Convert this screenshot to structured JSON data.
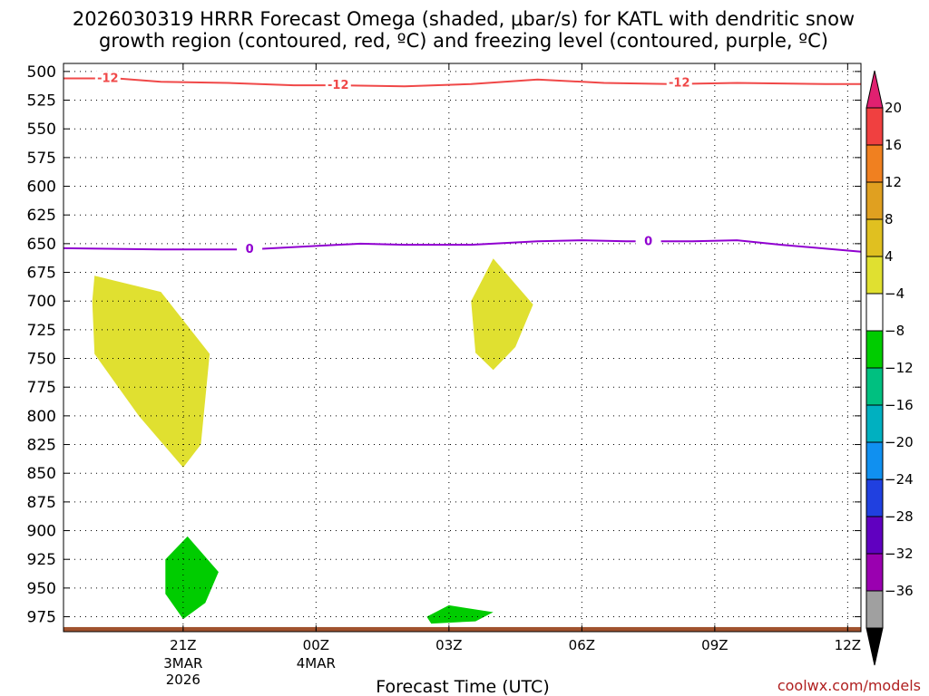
{
  "chart_data": {
    "type": "contour",
    "title_lines": [
      "2026030319 HRRR Forecast Omega (shaded, μbar/s) for KATL with dendritic snow",
      "growth region (contoured, red, ºC) and freezing level (contoured, purple, ºC)"
    ],
    "xlabel": "Forecast Time (UTC)",
    "ylabel": "",
    "credit": "coolwx.com/models",
    "y_axis": {
      "units": "hPa",
      "inverted": true,
      "range": [
        988,
        493
      ],
      "ticks": [
        500,
        525,
        550,
        575,
        600,
        625,
        650,
        675,
        700,
        725,
        750,
        775,
        800,
        825,
        850,
        875,
        900,
        925,
        950,
        975
      ]
    },
    "x_axis": {
      "units": "hours after 19Z 3MAR2026",
      "range": [
        -0.7,
        17.3
      ],
      "ticks": [
        {
          "hour": 2,
          "label": "21Z",
          "sub": [
            "3MAR",
            "2026"
          ]
        },
        {
          "hour": 5,
          "label": "00Z",
          "sub": [
            "4MAR"
          ]
        },
        {
          "hour": 8,
          "label": "03Z",
          "sub": []
        },
        {
          "hour": 11,
          "label": "06Z",
          "sub": []
        },
        {
          "hour": 14,
          "label": "09Z",
          "sub": []
        },
        {
          "hour": 17,
          "label": "12Z",
          "sub": []
        }
      ]
    },
    "grid": true,
    "colorbar": {
      "levels": [
        20,
        16,
        12,
        8,
        4,
        -4,
        -8,
        -12,
        -16,
        -20,
        -24,
        -28,
        -32,
        -36
      ],
      "colors": [
        "#e02070",
        "#f04040",
        "#f08020",
        "#e0a020",
        "#e0c020",
        "#e0e030",
        "#ffffff",
        "#00cc00",
        "#00c080",
        "#00b0c0",
        "#1090f0",
        "#2040e0",
        "#6000c0",
        "#9a00b0",
        "#a0a0a0",
        "#000000"
      ]
    },
    "contours": [
      {
        "label": "-12",
        "color": "#f04848",
        "points": [
          [
            -0.7,
            506
          ],
          [
            0.5,
            506
          ],
          [
            1.5,
            509
          ],
          [
            3,
            510
          ],
          [
            4.5,
            512
          ],
          [
            5.5,
            512
          ],
          [
            7,
            513
          ],
          [
            8.5,
            511
          ],
          [
            10,
            507
          ],
          [
            11.5,
            510
          ],
          [
            13,
            511
          ],
          [
            14.5,
            510
          ],
          [
            16.5,
            511
          ],
          [
            17.3,
            511
          ]
        ],
        "label_at": [
          [
            0.3,
            506
          ],
          [
            5.5,
            512
          ],
          [
            13.2,
            510
          ]
        ]
      },
      {
        "label": "0",
        "color": "#9000d0",
        "points": [
          [
            -0.7,
            654
          ],
          [
            1.5,
            655
          ],
          [
            3.5,
            655
          ],
          [
            5,
            652
          ],
          [
            6,
            650
          ],
          [
            7,
            651
          ],
          [
            8.5,
            651
          ],
          [
            10,
            648
          ],
          [
            11,
            647
          ],
          [
            12,
            648
          ],
          [
            13.5,
            648
          ],
          [
            14.5,
            647
          ],
          [
            15.5,
            651
          ],
          [
            17.3,
            657
          ]
        ],
        "label_at": [
          [
            3.5,
            655
          ],
          [
            12.5,
            648
          ]
        ]
      }
    ],
    "shaded_regions": [
      {
        "name": "yellow-west",
        "color": "#e0e030",
        "points": [
          [
            0.0,
            678
          ],
          [
            1.5,
            692
          ],
          [
            2.6,
            746
          ],
          [
            2.4,
            825
          ],
          [
            2.0,
            845
          ],
          [
            1.0,
            800
          ],
          [
            0.0,
            746
          ],
          [
            -0.05,
            700
          ]
        ]
      },
      {
        "name": "yellow-east",
        "color": "#e0e030",
        "points": [
          [
            9.0,
            663
          ],
          [
            9.9,
            703
          ],
          [
            9.5,
            740
          ],
          [
            9.0,
            760
          ],
          [
            8.6,
            745
          ],
          [
            8.5,
            700
          ]
        ]
      },
      {
        "name": "green-low",
        "color": "#00cc00",
        "points": [
          [
            2.1,
            905
          ],
          [
            2.8,
            936
          ],
          [
            2.5,
            963
          ],
          [
            2.0,
            977
          ],
          [
            1.6,
            955
          ],
          [
            1.6,
            925
          ]
        ]
      },
      {
        "name": "green-surface",
        "color": "#00cc00",
        "points": [
          [
            7.5,
            975
          ],
          [
            8.0,
            965
          ],
          [
            9.0,
            971
          ],
          [
            8.6,
            979
          ],
          [
            7.6,
            981
          ]
        ]
      }
    ],
    "terrain": {
      "color": "#a0522d",
      "top_hPa": 984,
      "bottom_hPa": 988
    }
  }
}
